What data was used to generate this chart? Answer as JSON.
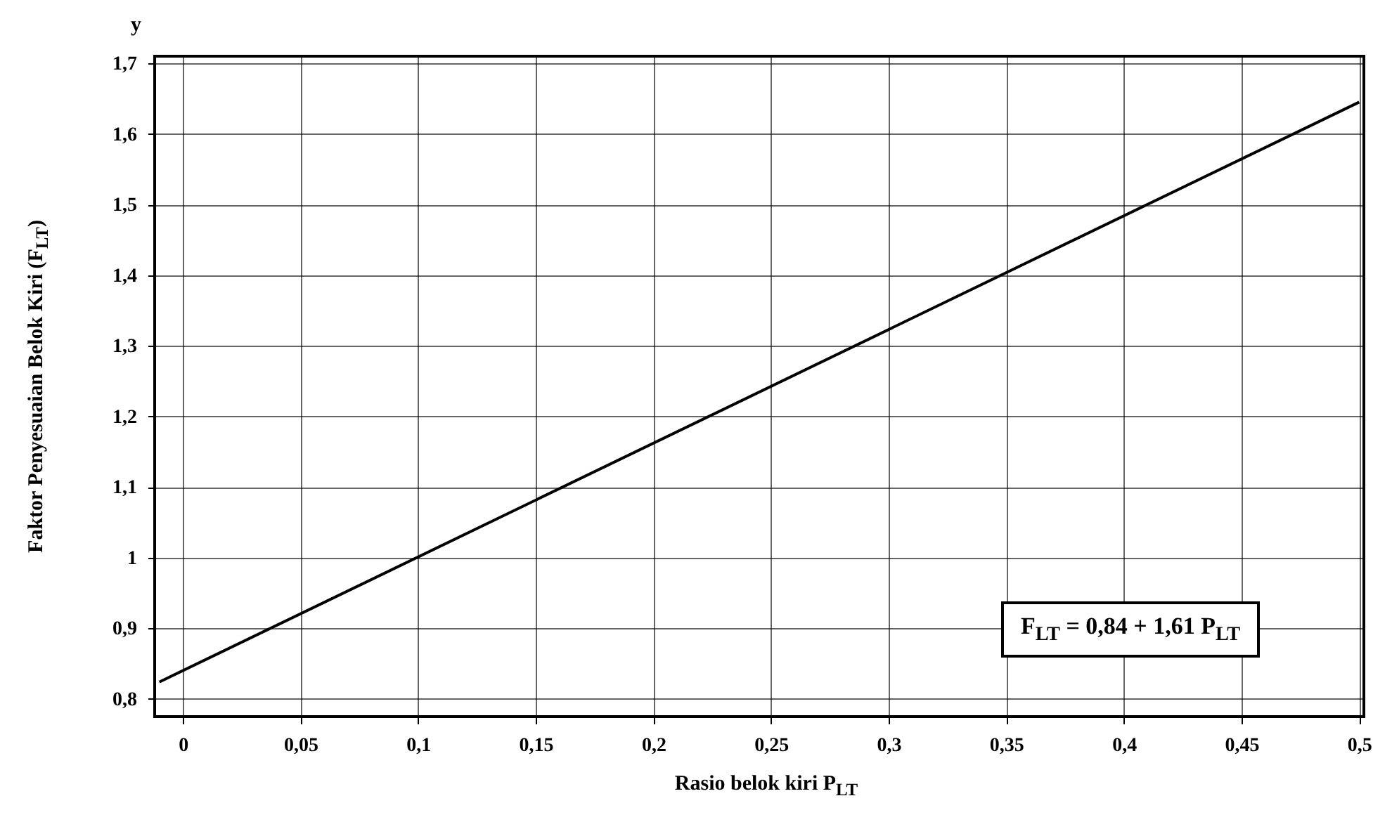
{
  "chart_data": {
    "type": "line",
    "xlabel": "Rasio belok kiri P$_{LT}$",
    "ylabel": "Faktor Penyesuaian Belok Kiri (F$_{LT}$)",
    "annotations": [
      "y",
      "F$_{LT}$ = 0,84 + 1,61 P$_{LT}$"
    ],
    "series": [
      {
        "color": "#000000",
        "x": [
          -0.01,
          0.5
        ],
        "values": [
          0.824,
          1.645
        ]
      }
    ],
    "xlim": [
      -0.012,
      0.502
    ],
    "ylim": [
      0.775,
      1.71
    ],
    "xticks": [
      {
        "value": 0,
        "label": "0"
      },
      {
        "value": 0.05,
        "label": "0,05"
      },
      {
        "value": 0.1,
        "label": "0,1"
      },
      {
        "value": 0.15,
        "label": "0,15"
      },
      {
        "value": 0.2,
        "label": "0,2"
      },
      {
        "value": 0.25,
        "label": "0,25"
      },
      {
        "value": 0.3,
        "label": "0,3"
      },
      {
        "value": 0.35,
        "label": "0,35"
      },
      {
        "value": 0.4,
        "label": "0,4"
      },
      {
        "value": 0.45,
        "label": "0,45"
      },
      {
        "value": 0.5,
        "label": "0,5"
      }
    ],
    "yticks": [
      {
        "value": 0.8,
        "label": "0,8"
      },
      {
        "value": 0.9,
        "label": "0,9"
      },
      {
        "value": 1,
        "label": "1"
      },
      {
        "value": 1.1,
        "label": "1,1"
      },
      {
        "value": 1.2,
        "label": "1,2"
      },
      {
        "value": 1.3,
        "label": "1,3"
      },
      {
        "value": 1.4,
        "label": "1,4"
      },
      {
        "value": 1.5,
        "label": "1,5"
      },
      {
        "value": 1.6,
        "label": "1,6"
      },
      {
        "value": 1.7,
        "label": "1,7"
      }
    ],
    "grid": true,
    "marker": "none",
    "line_style": "solid"
  }
}
